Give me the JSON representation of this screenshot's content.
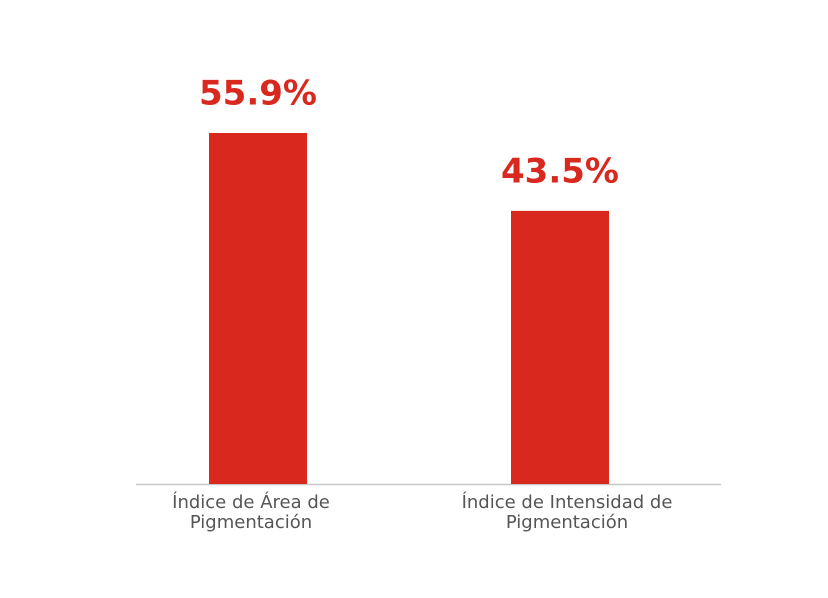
{
  "chart_data": {
    "type": "bar",
    "categories": [
      "Índice de Área de Pigmentación",
      "Índice de Intensidad de Pigmentación"
    ],
    "values": [
      55.9,
      43.5
    ],
    "value_labels": [
      "55.9%",
      "43.5%"
    ],
    "color": "#d9281e"
  }
}
